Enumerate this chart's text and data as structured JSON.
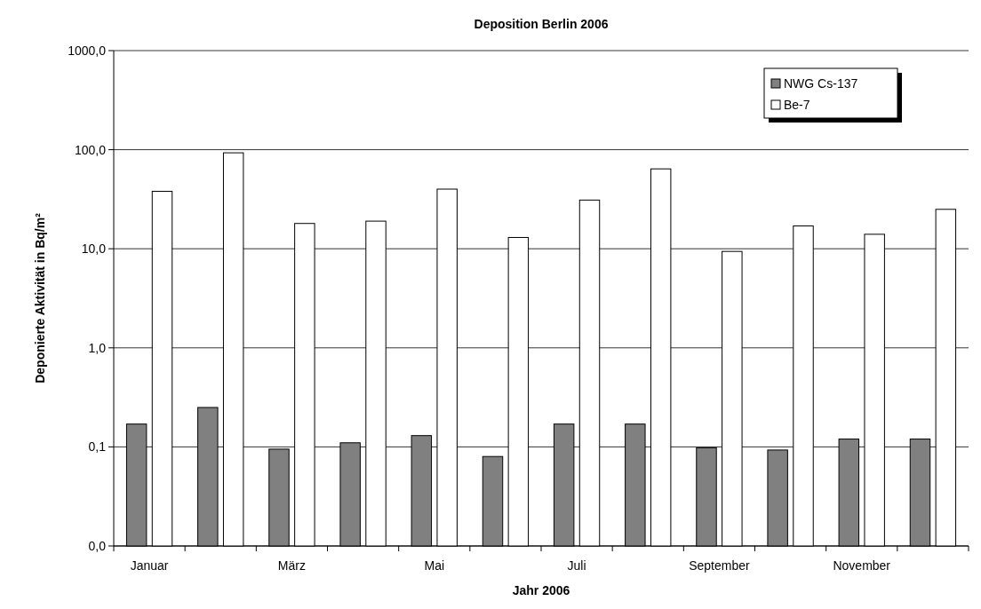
{
  "chart_data": {
    "type": "bar",
    "title": "Deposition Berlin 2006",
    "xlabel": "Jahr 2006",
    "ylabel": "Deponierte Aktivität in Bq/m²",
    "categories": [
      "Januar",
      null,
      "März",
      null,
      "Mai",
      null,
      "Juli",
      null,
      "September",
      null,
      "November",
      null
    ],
    "series": [
      {
        "name": "NWG Cs-137",
        "color": "#808080",
        "values": [
          0.17,
          0.25,
          0.095,
          0.11,
          0.13,
          0.08,
          0.17,
          0.17,
          0.098,
          0.093,
          0.12,
          0.12
        ]
      },
      {
        "name": "Be-7",
        "color": "#ffffff",
        "values": [
          38,
          93,
          18,
          19,
          40,
          13,
          31,
          64,
          9.4,
          17,
          14,
          25
        ]
      }
    ],
    "log": "y",
    "ylim": [
      0.01,
      1000
    ],
    "yticks": [
      {
        "value": 0.01,
        "label": "0,0"
      },
      {
        "value": 0.1,
        "label": "0,1"
      },
      {
        "value": 1,
        "label": "1,0"
      },
      {
        "value": 10,
        "label": "10,0"
      },
      {
        "value": 100,
        "label": "100,0"
      },
      {
        "value": 1000,
        "label": "1000,0"
      }
    ],
    "grid": "y",
    "legend": "top right"
  }
}
